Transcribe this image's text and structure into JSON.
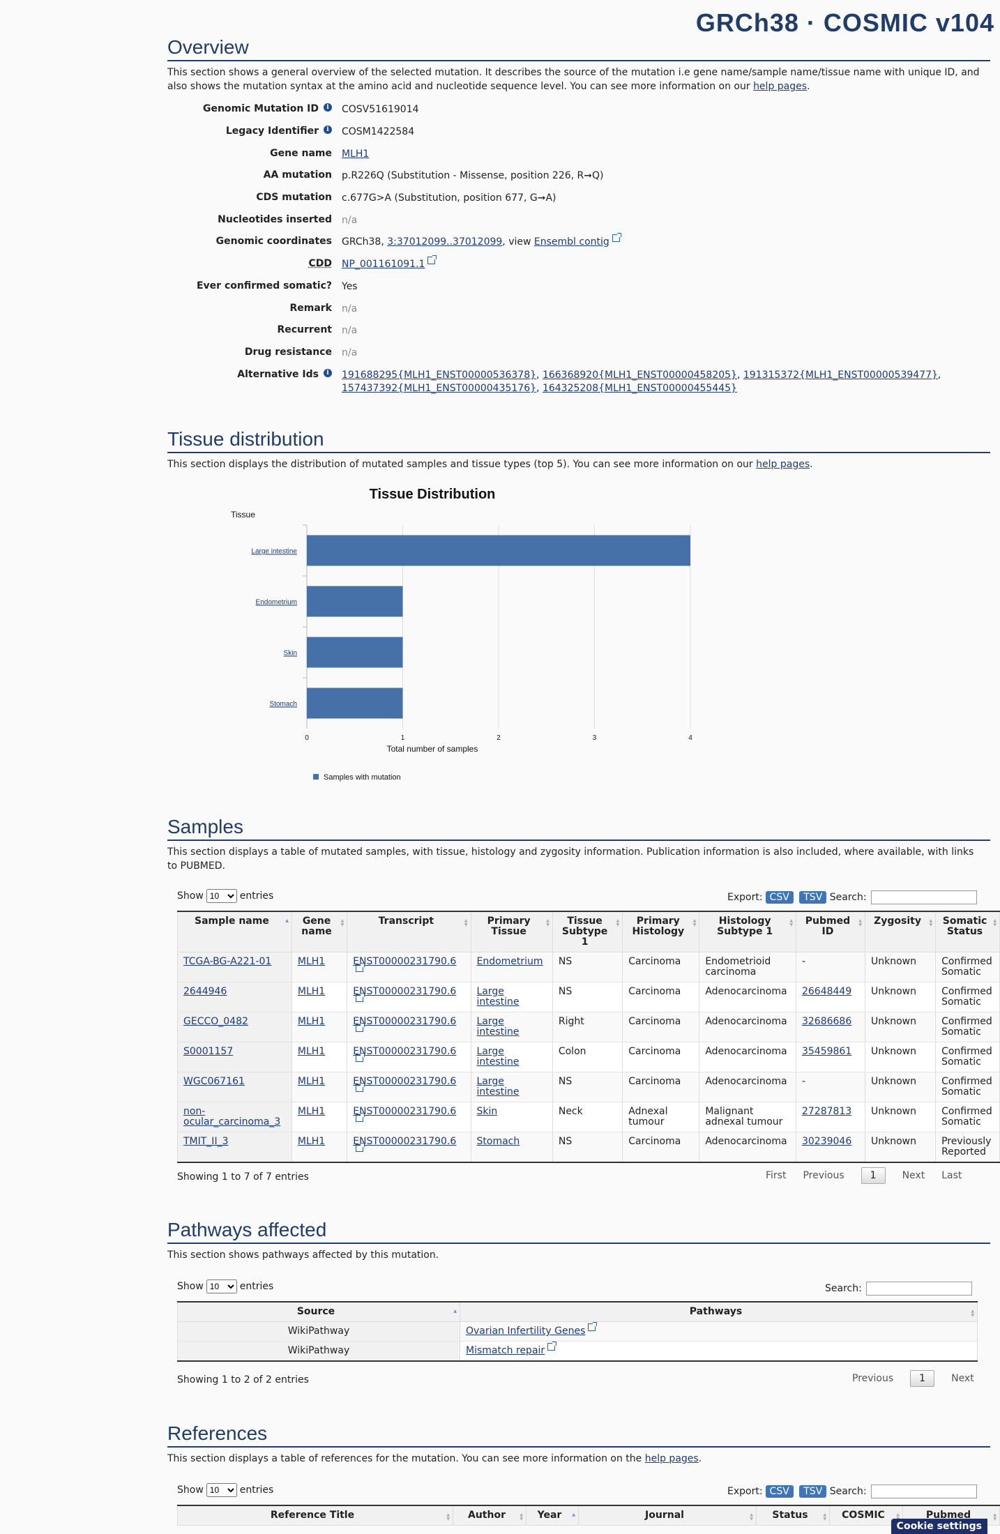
{
  "header": {
    "genome": "GRCh38 · COSMIC v104"
  },
  "overview": {
    "title": "Overview",
    "intro_a": "This section shows a general overview of the selected mutation. It describes the source of the mutation i.e gene name/sample name/tissue name with unique ID, and also shows the mutation syntax at the amino acid and nucleotide sequence level. You can see more information on our ",
    "intro_link": "help pages",
    "intro_b": ".",
    "fields": {
      "genomic_mutation_id": {
        "label": "Genomic Mutation ID",
        "value": "COSV51619014"
      },
      "legacy_identifier": {
        "label": "Legacy Identifier",
        "value": "COSM1422584"
      },
      "gene_name": {
        "label": "Gene name",
        "value": "MLH1"
      },
      "aa_mutation": {
        "label": "AA mutation",
        "value": "p.R226Q (Substitution - Missense, position 226, R➞Q)"
      },
      "cds_mutation": {
        "label": "CDS mutation",
        "value": "c.677G>A (Substitution, position 677, G➞A)"
      },
      "nucleotides_inserted": {
        "label": "Nucleotides inserted",
        "value": "n/a"
      },
      "genomic_coordinates": {
        "label": "Genomic coordinates",
        "prefix": "GRCh38, ",
        "coord": "3:37012099..37012099",
        "mid": ", view ",
        "contig": "Ensembl contig"
      },
      "cdd": {
        "label": "CDD",
        "value": "NP_001161091.1"
      },
      "ever_confirmed_somatic": {
        "label": "Ever confirmed somatic?",
        "value": "Yes"
      },
      "remark": {
        "label": "Remark",
        "value": "n/a"
      },
      "recurrent": {
        "label": "Recurrent",
        "value": "n/a"
      },
      "drug_resistance": {
        "label": "Drug resistance",
        "value": "n/a"
      },
      "alternative_ids": {
        "label": "Alternative Ids",
        "ids": [
          "191688295{MLH1_ENST00000536378}",
          "166368920{MLH1_ENST00000458205}",
          "191315372{MLH1_ENST00000539477}",
          "157437392{MLH1_ENST00000435176}",
          "164325208{MLH1_ENST00000455445}"
        ]
      }
    }
  },
  "tissue": {
    "title": "Tissue distribution",
    "intro_a": "This section displays the distribution of mutated samples and tissue types (top 5). You can see more information on our ",
    "intro_link": "help pages",
    "intro_b": "."
  },
  "chart_data": {
    "type": "bar",
    "orientation": "horizontal",
    "title": "Tissue Distribution",
    "ylabel": "Tissue",
    "xlabel": "Total number of samples",
    "categories": [
      "Large intestine",
      "Endometrium",
      "Skin",
      "Stomach"
    ],
    "series": [
      {
        "name": "Samples with mutation",
        "values": [
          4,
          1,
          1,
          1
        ]
      }
    ],
    "xlim": [
      0,
      4
    ],
    "xticks": [
      "0",
      "1",
      "2",
      "3",
      "4"
    ],
    "grid": true,
    "legend": "bottom-left",
    "color": "#4571a8"
  },
  "samples": {
    "title": "Samples",
    "intro": "This section displays a table of mutated samples, with tissue, histology and zygosity information. Publication information is also included, where available, with links to PUBMED.",
    "show_label": "Show",
    "entries_label": "entries",
    "page_size": "10",
    "export_label": "Export:",
    "csv": "CSV",
    "tsv": "TSV",
    "search_label": "Search:",
    "columns": [
      "Sample name",
      "Gene name",
      "Transcript",
      "Primary Tissue",
      "Tissue Subtype 1",
      "Primary Histology",
      "Histology Subtype 1",
      "Pubmed ID",
      "Zygosity",
      "Somatic Status"
    ],
    "rows": [
      [
        "TCGA-BG-A221-01",
        "MLH1",
        "ENST00000231790.6",
        "Endometrium",
        "NS",
        "Carcinoma",
        "Endometrioid carcinoma",
        "-",
        "Unknown",
        "Confirmed Somatic"
      ],
      [
        "2644946",
        "MLH1",
        "ENST00000231790.6",
        "Large intestine",
        "NS",
        "Carcinoma",
        "Adenocarcinoma",
        "26648449",
        "Unknown",
        "Confirmed Somatic"
      ],
      [
        "GECCO_0482",
        "MLH1",
        "ENST00000231790.6",
        "Large intestine",
        "Right",
        "Carcinoma",
        "Adenocarcinoma",
        "32686686",
        "Unknown",
        "Confirmed Somatic"
      ],
      [
        "S0001157",
        "MLH1",
        "ENST00000231790.6",
        "Large intestine",
        "Colon",
        "Carcinoma",
        "Adenocarcinoma",
        "35459861",
        "Unknown",
        "Confirmed Somatic"
      ],
      [
        "WGC067161",
        "MLH1",
        "ENST00000231790.6",
        "Large intestine",
        "NS",
        "Carcinoma",
        "Adenocarcinoma",
        "-",
        "Unknown",
        "Confirmed Somatic"
      ],
      [
        "non-ocular_carcinoma_3",
        "MLH1",
        "ENST00000231790.6",
        "Skin",
        "Neck",
        "Adnexal tumour",
        "Malignant adnexal tumour",
        "27287813",
        "Unknown",
        "Confirmed Somatic"
      ],
      [
        "TMIT_II_3",
        "MLH1",
        "ENST00000231790.6",
        "Stomach",
        "NS",
        "Carcinoma",
        "Adenocarcinoma",
        "30239046",
        "Unknown",
        "Previously Reported"
      ]
    ],
    "info": "Showing 1 to 7 of 7 entries",
    "pager": {
      "first": "First",
      "previous": "Previous",
      "page": "1",
      "next": "Next",
      "last": "Last"
    }
  },
  "pathways": {
    "title": "Pathways affected",
    "intro": "This section shows pathways affected by this mutation.",
    "columns": [
      "Source",
      "Pathways"
    ],
    "rows": [
      [
        "WikiPathway",
        "Ovarian Infertility Genes"
      ],
      [
        "WikiPathway",
        "Mismatch repair"
      ]
    ],
    "info": "Showing 1 to 2 of 2 entries",
    "pager": {
      "previous": "Previous",
      "page": "1",
      "next": "Next"
    }
  },
  "references": {
    "title": "References",
    "intro_a": "This section displays a table of references for the mutation. You can see more information on the ",
    "intro_link": "help pages",
    "intro_b": ".",
    "columns": [
      "Reference Title",
      "Author",
      "Year",
      "Journal",
      "Status",
      "COSMIC",
      "Pubmed"
    ]
  },
  "cookie": "Cookie settings"
}
